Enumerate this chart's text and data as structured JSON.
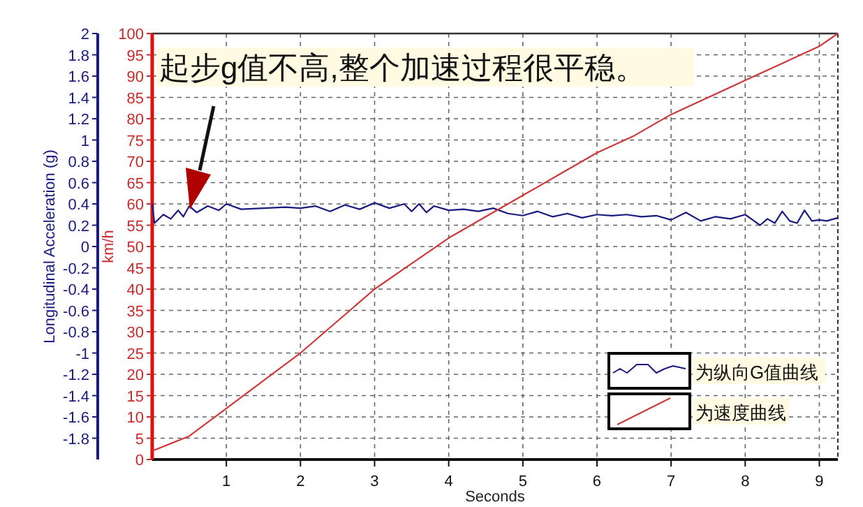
{
  "chart_data": {
    "type": "line",
    "xlabel": "Seconds",
    "ylabel": "Longitudinal Acceleration (g)",
    "y2label": "km/h",
    "annotations": [
      "起步g值不高,整个加速过程很平稳。"
    ],
    "xlim": [
      0,
      9.25
    ],
    "xticks": [
      1,
      2,
      3,
      4,
      5,
      6,
      7,
      8,
      9
    ],
    "ylim": [
      -2,
      2
    ],
    "yticks": [
      2,
      1.8,
      1.6,
      1.4,
      1.2,
      1,
      0.8,
      0.6,
      0.4,
      0.2,
      0,
      -0.2,
      -0.4,
      -0.6,
      -0.8,
      -1,
      -1.2,
      -1.4,
      -1.6,
      -1.8
    ],
    "y2lim": [
      0,
      100
    ],
    "y2ticks": [
      0,
      5,
      10,
      15,
      20,
      25,
      30,
      35,
      40,
      45,
      50,
      55,
      60,
      65,
      70,
      75,
      80,
      85,
      90,
      95,
      100
    ],
    "grid": true,
    "legend": "bottom right",
    "series": [
      {
        "name": "为纵向G值曲线",
        "color": "#1a1a80",
        "x": [
          0,
          0.03,
          0.15,
          0.25,
          0.35,
          0.42,
          0.5,
          0.6,
          0.75,
          0.9,
          1.0,
          1.2,
          1.5,
          1.8,
          2.0,
          2.2,
          2.4,
          2.6,
          2.8,
          3.0,
          3.2,
          3.4,
          3.5,
          3.6,
          3.7,
          3.8,
          4.0,
          4.2,
          4.4,
          4.6,
          4.8,
          5.0,
          5.2,
          5.4,
          5.6,
          5.8,
          6.0,
          6.2,
          6.4,
          6.6,
          6.8,
          7.0,
          7.2,
          7.4,
          7.6,
          7.8,
          8.0,
          8.1,
          8.2,
          8.3,
          8.4,
          8.5,
          8.6,
          8.7,
          8.8,
          8.9,
          9.0,
          9.1,
          9.25
        ],
        "values": [
          0.4,
          0.22,
          0.3,
          0.26,
          0.34,
          0.28,
          0.38,
          0.32,
          0.38,
          0.34,
          0.4,
          0.35,
          0.36,
          0.37,
          0.36,
          0.38,
          0.33,
          0.39,
          0.35,
          0.41,
          0.36,
          0.4,
          0.33,
          0.4,
          0.32,
          0.38,
          0.34,
          0.35,
          0.33,
          0.36,
          0.31,
          0.29,
          0.33,
          0.28,
          0.31,
          0.27,
          0.3,
          0.29,
          0.3,
          0.28,
          0.29,
          0.25,
          0.32,
          0.24,
          0.28,
          0.26,
          0.3,
          0.25,
          0.2,
          0.26,
          0.22,
          0.33,
          0.24,
          0.22,
          0.34,
          0.24,
          0.25,
          0.24,
          0.27
        ]
      },
      {
        "name": "为速度曲线",
        "color": "#d03838",
        "axis": "y2",
        "x": [
          0,
          0.5,
          1,
          1.5,
          2,
          2.5,
          3,
          3.5,
          4,
          4.5,
          5,
          5.5,
          6,
          6.5,
          7,
          7.5,
          8,
          8.5,
          9,
          9.25
        ],
        "values": [
          2,
          5.5,
          12,
          18.5,
          25,
          32.5,
          40,
          46,
          52,
          57,
          62,
          67,
          72,
          76,
          81,
          85,
          89,
          93,
          97,
          100
        ]
      }
    ]
  }
}
